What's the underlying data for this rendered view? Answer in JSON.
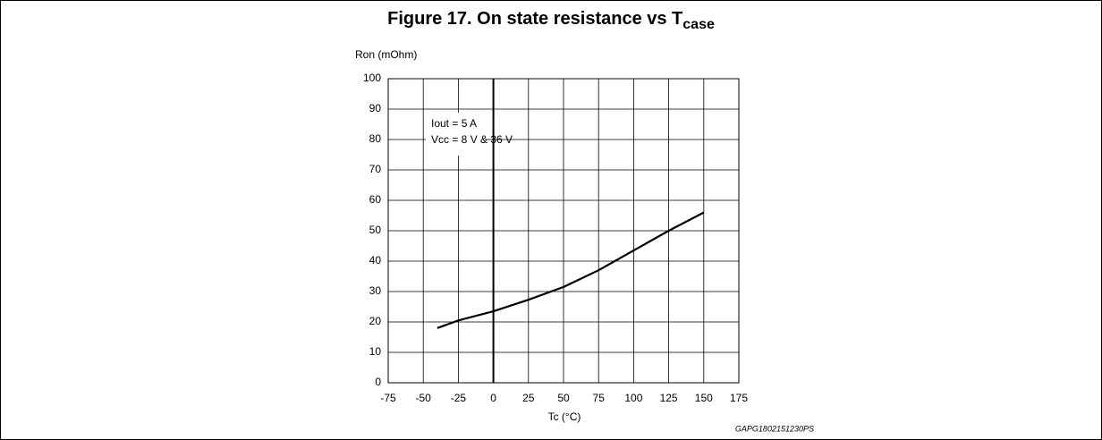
{
  "chart_data": {
    "type": "line",
    "title": "Figure 17. On state resistance vs T",
    "title_subscript": "case",
    "y_label": "Ron (mOhm)",
    "x_label": "Tc (°C)",
    "annotations": [
      "Iout = 5 A",
      "Vcc = 8 V & 36 V"
    ],
    "code": "GAPG1802151230PS",
    "x": [
      -40,
      -25,
      0,
      25,
      50,
      75,
      100,
      125,
      150
    ],
    "series": [
      {
        "name": "Ron",
        "color": "#000000",
        "values": [
          18,
          20.5,
          23.5,
          27.3,
          31.5,
          37,
          43.5,
          50,
          56
        ]
      }
    ],
    "xlim": [
      -75,
      175
    ],
    "xticks": [
      -75,
      -50,
      -25,
      0,
      25,
      50,
      75,
      100,
      125,
      150,
      175
    ],
    "ylim": [
      0,
      100
    ],
    "yticks": [
      0,
      10,
      20,
      30,
      40,
      50,
      60,
      70,
      80,
      90,
      100
    ],
    "grid": true
  }
}
